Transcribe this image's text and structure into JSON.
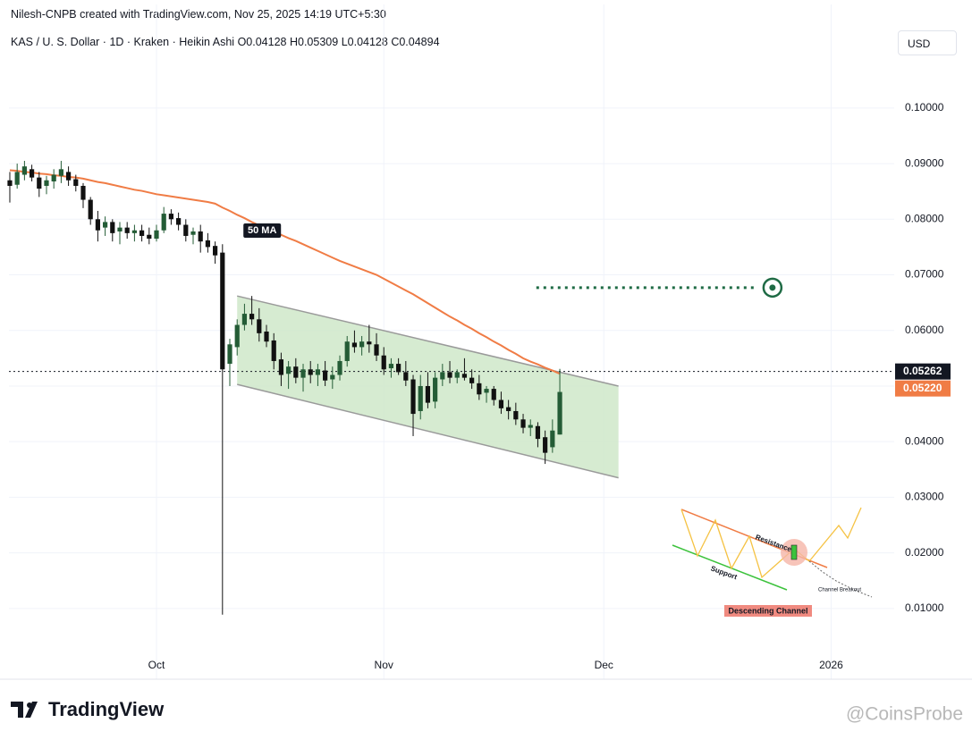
{
  "header": {
    "credit": "Nilesh-CNPB created with TradingView.com, Nov 25, 2025 14:19 UTC+5:30",
    "symbol": "KAS / U. S. Dollar · 1D · Kraken · Heikin Ashi",
    "ohlc": [
      "O0.04128",
      "H0.05309",
      "L0.04128",
      "C0.04894"
    ],
    "currency": "USD"
  },
  "chart_data": {
    "type": "candlestick",
    "colors": {
      "up": "#245c36",
      "down": "#111111",
      "ma": "#f07c45",
      "channel": "#cfe8c9",
      "target": "#1f6b45"
    },
    "xlim": [
      -0.12,
      120.6
    ],
    "xticks": [
      {
        "value": 20,
        "label": "Oct"
      },
      {
        "value": 51,
        "label": "Nov"
      },
      {
        "value": 81,
        "label": "Dec"
      },
      {
        "value": 112,
        "label": "2026"
      }
    ],
    "ylim": [
      0.0021,
      0.1138
    ],
    "yticks": [
      {
        "value": 0.01,
        "label": "0.01000"
      },
      {
        "value": 0.02,
        "label": "0.02000"
      },
      {
        "value": 0.03,
        "label": "0.03000"
      },
      {
        "value": 0.04,
        "label": "0.04000"
      },
      {
        "value": 0.05,
        "label": "0.05000"
      },
      {
        "value": 0.06,
        "label": "0.06000"
      },
      {
        "value": 0.07,
        "label": "0.07000"
      },
      {
        "value": 0.08,
        "label": "0.08000"
      },
      {
        "value": 0.09,
        "label": "0.09000"
      },
      {
        "value": 0.1,
        "label": "0.10000"
      }
    ],
    "grid": true,
    "open": [
      0.087,
      0.0862,
      0.088,
      0.089,
      0.0875,
      0.086,
      0.0868,
      0.0878,
      0.0885,
      0.0872,
      0.086,
      0.0835,
      0.08,
      0.0785,
      0.0795,
      0.0778,
      0.0785,
      0.0775,
      0.078,
      0.0772,
      0.0765,
      0.078,
      0.081,
      0.0802,
      0.079,
      0.0772,
      0.0778,
      0.0762,
      0.0752,
      0.074,
      0.054,
      0.057,
      0.061,
      0.063,
      0.062,
      0.0598,
      0.0582,
      0.0548,
      0.0522,
      0.0535,
      0.0515,
      0.053,
      0.052,
      0.0528,
      0.0512,
      0.052,
      0.0545,
      0.0578,
      0.057,
      0.058,
      0.0575,
      0.0555,
      0.0532,
      0.054,
      0.0525,
      0.0512,
      0.0455,
      0.05,
      0.0472,
      0.0512,
      0.0525,
      0.0515,
      0.0522,
      0.0515,
      0.0505,
      0.0488,
      0.0495,
      0.0475,
      0.0462,
      0.0455,
      0.044,
      0.0425,
      0.0428,
      0.0408,
      0.039,
      0.04128
    ],
    "high": [
      0.0885,
      0.09,
      0.0905,
      0.0898,
      0.0885,
      0.0878,
      0.089,
      0.0905,
      0.0895,
      0.088,
      0.0865,
      0.084,
      0.0815,
      0.0805,
      0.08,
      0.0795,
      0.0795,
      0.079,
      0.079,
      0.0785,
      0.079,
      0.0822,
      0.0818,
      0.0812,
      0.08,
      0.0785,
      0.079,
      0.0775,
      0.076,
      0.0755,
      0.0585,
      0.062,
      0.0648,
      0.0662,
      0.064,
      0.061,
      0.0595,
      0.056,
      0.0545,
      0.055,
      0.054,
      0.0545,
      0.054,
      0.0545,
      0.0535,
      0.0555,
      0.059,
      0.06,
      0.059,
      0.061,
      0.0595,
      0.057,
      0.055,
      0.055,
      0.0545,
      0.052,
      0.052,
      0.0525,
      0.0525,
      0.054,
      0.0545,
      0.053,
      0.055,
      0.053,
      0.052,
      0.05,
      0.05,
      0.049,
      0.0475,
      0.047,
      0.045,
      0.044,
      0.0435,
      0.042,
      0.044,
      0.05309
    ],
    "low": [
      0.083,
      0.0855,
      0.087,
      0.0868,
      0.084,
      0.0845,
      0.0855,
      0.0865,
      0.086,
      0.085,
      0.082,
      0.079,
      0.076,
      0.077,
      0.076,
      0.0755,
      0.0765,
      0.076,
      0.076,
      0.0755,
      0.076,
      0.0775,
      0.079,
      0.078,
      0.076,
      0.0755,
      0.074,
      0.074,
      0.072,
      0.0089,
      0.05,
      0.0555,
      0.06,
      0.061,
      0.058,
      0.057,
      0.053,
      0.05,
      0.0495,
      0.0505,
      0.049,
      0.0505,
      0.05,
      0.05,
      0.0495,
      0.051,
      0.0535,
      0.056,
      0.0555,
      0.056,
      0.0545,
      0.052,
      0.0515,
      0.052,
      0.05,
      0.041,
      0.044,
      0.046,
      0.046,
      0.05,
      0.0505,
      0.0505,
      0.051,
      0.0495,
      0.0475,
      0.047,
      0.0465,
      0.045,
      0.044,
      0.043,
      0.0415,
      0.041,
      0.039,
      0.036,
      0.038,
      0.04128
    ],
    "close": [
      0.086,
      0.0885,
      0.0895,
      0.0875,
      0.0855,
      0.087,
      0.088,
      0.089,
      0.087,
      0.086,
      0.0835,
      0.08,
      0.078,
      0.0795,
      0.0775,
      0.0785,
      0.0775,
      0.078,
      0.077,
      0.0765,
      0.078,
      0.081,
      0.08,
      0.079,
      0.077,
      0.0778,
      0.076,
      0.075,
      0.0735,
      0.053,
      0.0575,
      0.061,
      0.063,
      0.062,
      0.0595,
      0.058,
      0.0545,
      0.052,
      0.0535,
      0.0515,
      0.053,
      0.052,
      0.053,
      0.051,
      0.052,
      0.0545,
      0.058,
      0.057,
      0.058,
      0.0575,
      0.0555,
      0.053,
      0.054,
      0.0525,
      0.051,
      0.045,
      0.05,
      0.047,
      0.0515,
      0.0525,
      0.0515,
      0.0525,
      0.0515,
      0.0505,
      0.0485,
      0.0495,
      0.0475,
      0.046,
      0.0455,
      0.044,
      0.0425,
      0.043,
      0.0405,
      0.038,
      0.042,
      0.04894
    ],
    "ma": {
      "label": "50 MA",
      "values": [
        0.0888,
        0.0887,
        0.0885,
        0.0884,
        0.0882,
        0.0881,
        0.0879,
        0.0878,
        0.0876,
        0.0875,
        0.0873,
        0.087,
        0.0867,
        0.0865,
        0.0862,
        0.0859,
        0.0856,
        0.0853,
        0.0851,
        0.0848,
        0.0845,
        0.0843,
        0.0841,
        0.0839,
        0.0837,
        0.0835,
        0.0833,
        0.0831,
        0.0828,
        0.0821,
        0.0815,
        0.0808,
        0.0802,
        0.0795,
        0.0789,
        0.0784,
        0.0778,
        0.0772,
        0.0766,
        0.0761,
        0.0755,
        0.0749,
        0.0743,
        0.0737,
        0.0731,
        0.0725,
        0.072,
        0.0715,
        0.071,
        0.0705,
        0.07,
        0.0693,
        0.0686,
        0.0679,
        0.0672,
        0.0665,
        0.0657,
        0.0649,
        0.0641,
        0.0633,
        0.0625,
        0.0618,
        0.061,
        0.0603,
        0.0595,
        0.0588,
        0.058,
        0.0573,
        0.0565,
        0.0558,
        0.055,
        0.0544,
        0.0539,
        0.0533,
        0.0528,
        0.0522
      ]
    },
    "channel": {
      "x": [
        31,
        83
      ],
      "upper": [
        0.0662,
        0.05
      ],
      "lower": [
        0.0503,
        0.0335
      ]
    },
    "target": {
      "x": [
        71.8,
        101.7
      ],
      "value": 0.0677,
      "marker_x": 104
    },
    "last_price": 0.05262,
    "ma_price": {
      "value": 0.0522,
      "label": "0.05220"
    }
  },
  "inset": {
    "resistance": "Resistance",
    "support": "Support",
    "breakout": "Channel Breakout",
    "title": "Descending Channel"
  },
  "footer": {
    "logo": "TradingView",
    "watermark": "@CoinsProbe"
  }
}
